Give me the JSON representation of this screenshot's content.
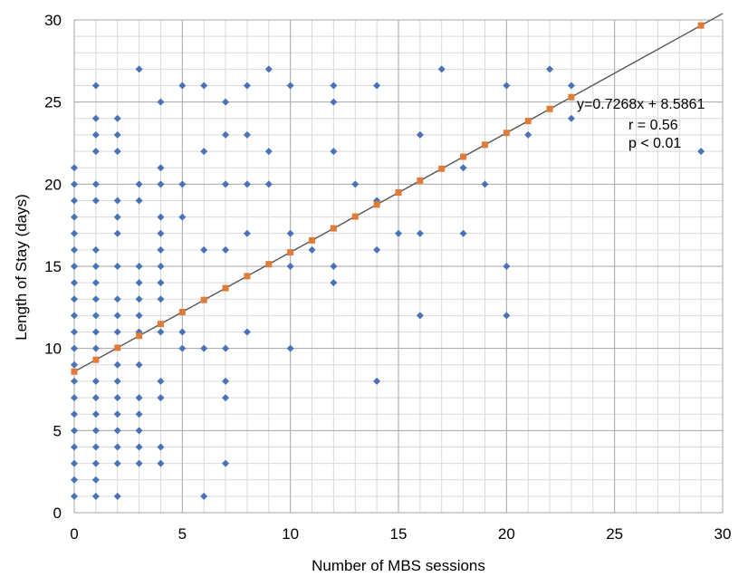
{
  "chart_data": {
    "type": "scatter",
    "title": "",
    "xlabel": "Number of MBS sessions",
    "ylabel": "Length of Stay (days)",
    "xlim": [
      0,
      30
    ],
    "ylim": [
      0,
      30
    ],
    "x_ticks": [
      "0",
      "5",
      "10",
      "15",
      "20",
      "25",
      "30"
    ],
    "y_ticks": [
      "0",
      "5",
      "10",
      "15",
      "20",
      "25",
      "30"
    ],
    "grid": "on",
    "legend": "none",
    "colors": {
      "observed": "#4a72b8",
      "fitted": "#e07b39",
      "trendline": "#555555",
      "major_grid": "#a6a6a6",
      "minor_grid": "#d9d9d9"
    },
    "annotations": {
      "equation": "y=0.7268x + 8.5861",
      "r": "r = 0.56",
      "p": "p < 0.01"
    },
    "trendline": {
      "slope": 0.7268,
      "intercept": 8.5861,
      "x_range": [
        0,
        30
      ]
    },
    "series": [
      {
        "marker": "diamond",
        "points": [
          [
            0,
            1
          ],
          [
            0,
            2
          ],
          [
            0,
            3
          ],
          [
            0,
            4
          ],
          [
            0,
            5
          ],
          [
            0,
            6
          ],
          [
            0,
            7
          ],
          [
            0,
            8
          ],
          [
            0,
            9
          ],
          [
            0,
            10
          ],
          [
            0,
            11
          ],
          [
            0,
            12
          ],
          [
            0,
            13
          ],
          [
            0,
            14
          ],
          [
            0,
            15
          ],
          [
            0,
            16
          ],
          [
            0,
            17
          ],
          [
            0,
            18
          ],
          [
            0,
            19
          ],
          [
            0,
            20
          ],
          [
            0,
            21
          ],
          [
            1,
            1
          ],
          [
            1,
            2
          ],
          [
            1,
            3
          ],
          [
            1,
            4
          ],
          [
            1,
            5
          ],
          [
            1,
            6
          ],
          [
            1,
            7
          ],
          [
            1,
            8
          ],
          [
            1,
            10
          ],
          [
            1,
            11
          ],
          [
            1,
            12
          ],
          [
            1,
            13
          ],
          [
            1,
            14
          ],
          [
            1,
            15
          ],
          [
            1,
            16
          ],
          [
            1,
            19
          ],
          [
            1,
            20
          ],
          [
            1,
            22
          ],
          [
            1,
            23
          ],
          [
            1,
            24
          ],
          [
            1,
            26
          ],
          [
            2,
            1
          ],
          [
            2,
            3
          ],
          [
            2,
            4
          ],
          [
            2,
            5
          ],
          [
            2,
            6
          ],
          [
            2,
            7
          ],
          [
            2,
            8
          ],
          [
            2,
            9
          ],
          [
            2,
            11
          ],
          [
            2,
            12
          ],
          [
            2,
            13
          ],
          [
            2,
            15
          ],
          [
            2,
            17
          ],
          [
            2,
            18
          ],
          [
            2,
            19
          ],
          [
            2,
            22
          ],
          [
            2,
            23
          ],
          [
            2,
            24
          ],
          [
            3,
            3
          ],
          [
            3,
            4
          ],
          [
            3,
            5
          ],
          [
            3,
            6
          ],
          [
            3,
            7
          ],
          [
            3,
            9
          ],
          [
            3,
            11
          ],
          [
            3,
            12
          ],
          [
            3,
            13
          ],
          [
            3,
            14
          ],
          [
            3,
            15
          ],
          [
            3,
            19
          ],
          [
            3,
            20
          ],
          [
            3,
            27
          ],
          [
            4,
            3
          ],
          [
            4,
            4
          ],
          [
            4,
            7
          ],
          [
            4,
            8
          ],
          [
            4,
            11
          ],
          [
            4,
            13
          ],
          [
            4,
            14
          ],
          [
            4,
            15
          ],
          [
            4,
            16
          ],
          [
            4,
            17
          ],
          [
            4,
            18
          ],
          [
            4,
            20
          ],
          [
            4,
            21
          ],
          [
            4,
            25
          ],
          [
            5,
            10
          ],
          [
            5,
            11
          ],
          [
            5,
            18
          ],
          [
            5,
            20
          ],
          [
            5,
            26
          ],
          [
            6,
            1
          ],
          [
            6,
            10
          ],
          [
            6,
            16
          ],
          [
            6,
            22
          ],
          [
            6,
            26
          ],
          [
            7,
            3
          ],
          [
            7,
            7
          ],
          [
            7,
            8
          ],
          [
            7,
            10
          ],
          [
            7,
            16
          ],
          [
            7,
            20
          ],
          [
            7,
            23
          ],
          [
            7,
            25
          ],
          [
            8,
            11
          ],
          [
            8,
            17
          ],
          [
            8,
            20
          ],
          [
            8,
            23
          ],
          [
            8,
            26
          ],
          [
            9,
            20
          ],
          [
            9,
            22
          ],
          [
            9,
            27
          ],
          [
            10,
            10
          ],
          [
            10,
            15
          ],
          [
            10,
            17
          ],
          [
            10,
            26
          ],
          [
            11,
            16
          ],
          [
            12,
            14
          ],
          [
            12,
            15
          ],
          [
            12,
            22
          ],
          [
            12,
            25
          ],
          [
            12,
            26
          ],
          [
            13,
            20
          ],
          [
            14,
            8
          ],
          [
            14,
            16
          ],
          [
            14,
            19
          ],
          [
            14,
            26
          ],
          [
            15,
            17
          ],
          [
            16,
            12
          ],
          [
            16,
            17
          ],
          [
            16,
            23
          ],
          [
            17,
            27
          ],
          [
            18,
            17
          ],
          [
            18,
            21
          ],
          [
            19,
            20
          ],
          [
            20,
            12
          ],
          [
            20,
            15
          ],
          [
            20,
            26
          ],
          [
            21,
            23
          ],
          [
            22,
            27
          ],
          [
            23,
            24
          ],
          [
            23,
            26
          ],
          [
            29,
            22
          ]
        ]
      },
      {
        "marker": "square",
        "x": [
          0,
          1,
          2,
          3,
          4,
          5,
          6,
          7,
          8,
          9,
          10,
          11,
          12,
          13,
          14,
          15,
          16,
          17,
          18,
          19,
          20,
          21,
          22,
          23,
          29
        ],
        "y": [
          8.59,
          9.31,
          10.04,
          10.77,
          11.49,
          12.22,
          12.95,
          13.67,
          14.4,
          15.13,
          15.85,
          16.58,
          17.31,
          18.03,
          18.76,
          19.49,
          20.22,
          20.94,
          21.67,
          22.4,
          23.12,
          23.85,
          24.58,
          25.3,
          29.66
        ]
      }
    ]
  }
}
